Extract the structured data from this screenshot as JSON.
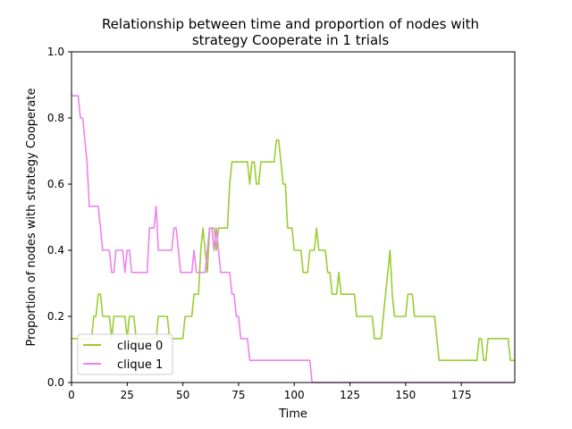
{
  "chart_data": {
    "type": "line",
    "title_line1": "Relationship between time and proportion of nodes with",
    "title_line2": "strategy Cooperate in 1 trials",
    "xlabel": "Time",
    "ylabel": "Proportion of nodes with strategy Cooperate",
    "xlim": [
      0,
      199
    ],
    "ylim": [
      0,
      1.0
    ],
    "xticks": [
      0,
      25,
      50,
      75,
      100,
      125,
      150,
      175
    ],
    "xtick_labels": [
      "0",
      "25",
      "50",
      "75",
      "100",
      "125",
      "150",
      "175"
    ],
    "yticks": [
      0,
      0.2,
      0.4,
      0.6,
      0.8,
      1.0
    ],
    "ytick_labels": [
      "0.0",
      "0.2",
      "0.4",
      "0.6",
      "0.8",
      "1.0"
    ],
    "legend_position": "lower-left",
    "series": [
      {
        "name": "clique 0",
        "color": "#9acd32",
        "points": [
          [
            0,
            0.133
          ],
          [
            9,
            0.133
          ],
          [
            10,
            0.2
          ],
          [
            11,
            0.2
          ],
          [
            12,
            0.267
          ],
          [
            13,
            0.267
          ],
          [
            14,
            0.2
          ],
          [
            17,
            0.2
          ],
          [
            18,
            0.133
          ],
          [
            19,
            0.2
          ],
          [
            24,
            0.2
          ],
          [
            25,
            0.133
          ],
          [
            26,
            0.2
          ],
          [
            28,
            0.2
          ],
          [
            29,
            0.133
          ],
          [
            38,
            0.133
          ],
          [
            39,
            0.2
          ],
          [
            43,
            0.2
          ],
          [
            44,
            0.133
          ],
          [
            50,
            0.133
          ],
          [
            51,
            0.2
          ],
          [
            54,
            0.2
          ],
          [
            55,
            0.267
          ],
          [
            57,
            0.267
          ],
          [
            58,
            0.4
          ],
          [
            59,
            0.467
          ],
          [
            60,
            0.4
          ],
          [
            61,
            0.333
          ],
          [
            62,
            0.467
          ],
          [
            64,
            0.467
          ],
          [
            65,
            0.4
          ],
          [
            66,
            0.467
          ],
          [
            70,
            0.467
          ],
          [
            71,
            0.6
          ],
          [
            72,
            0.667
          ],
          [
            79,
            0.667
          ],
          [
            80,
            0.6
          ],
          [
            81,
            0.667
          ],
          [
            82,
            0.667
          ],
          [
            83,
            0.6
          ],
          [
            84,
            0.6
          ],
          [
            85,
            0.667
          ],
          [
            91,
            0.667
          ],
          [
            92,
            0.733
          ],
          [
            93,
            0.733
          ],
          [
            94,
            0.667
          ],
          [
            95,
            0.6
          ],
          [
            96,
            0.6
          ],
          [
            97,
            0.467
          ],
          [
            99,
            0.467
          ],
          [
            100,
            0.4
          ],
          [
            103,
            0.4
          ],
          [
            104,
            0.333
          ],
          [
            106,
            0.333
          ],
          [
            107,
            0.4
          ],
          [
            109,
            0.4
          ],
          [
            110,
            0.467
          ],
          [
            111,
            0.4
          ],
          [
            114,
            0.4
          ],
          [
            115,
            0.333
          ],
          [
            116,
            0.333
          ],
          [
            117,
            0.267
          ],
          [
            119,
            0.267
          ],
          [
            120,
            0.333
          ],
          [
            121,
            0.267
          ],
          [
            127,
            0.267
          ],
          [
            128,
            0.2
          ],
          [
            135,
            0.2
          ],
          [
            136,
            0.133
          ],
          [
            139,
            0.133
          ],
          [
            140,
            0.2
          ],
          [
            141,
            0.267
          ],
          [
            142,
            0.333
          ],
          [
            143,
            0.4
          ],
          [
            144,
            0.267
          ],
          [
            145,
            0.2
          ],
          [
            150,
            0.2
          ],
          [
            151,
            0.267
          ],
          [
            153,
            0.267
          ],
          [
            154,
            0.2
          ],
          [
            163,
            0.2
          ],
          [
            164,
            0.133
          ],
          [
            165,
            0.067
          ],
          [
            182,
            0.067
          ],
          [
            183,
            0.133
          ],
          [
            184,
            0.133
          ],
          [
            185,
            0.067
          ],
          [
            186,
            0.067
          ],
          [
            187,
            0.133
          ],
          [
            196,
            0.133
          ],
          [
            197,
            0.067
          ],
          [
            199,
            0.067
          ]
        ]
      },
      {
        "name": "clique 1",
        "color": "#ee82ee",
        "points": [
          [
            0,
            0.867
          ],
          [
            3,
            0.867
          ],
          [
            4,
            0.8
          ],
          [
            5,
            0.8
          ],
          [
            6,
            0.733
          ],
          [
            7,
            0.667
          ],
          [
            8,
            0.533
          ],
          [
            12,
            0.533
          ],
          [
            13,
            0.467
          ],
          [
            14,
            0.4
          ],
          [
            17,
            0.4
          ],
          [
            18,
            0.333
          ],
          [
            19,
            0.333
          ],
          [
            20,
            0.4
          ],
          [
            23,
            0.4
          ],
          [
            24,
            0.333
          ],
          [
            25,
            0.4
          ],
          [
            26,
            0.4
          ],
          [
            27,
            0.333
          ],
          [
            34,
            0.333
          ],
          [
            35,
            0.467
          ],
          [
            37,
            0.467
          ],
          [
            38,
            0.533
          ],
          [
            39,
            0.4
          ],
          [
            45,
            0.4
          ],
          [
            46,
            0.467
          ],
          [
            47,
            0.467
          ],
          [
            48,
            0.4
          ],
          [
            49,
            0.333
          ],
          [
            54,
            0.333
          ],
          [
            55,
            0.4
          ],
          [
            56,
            0.333
          ],
          [
            60,
            0.333
          ],
          [
            61,
            0.4
          ],
          [
            62,
            0.467
          ],
          [
            63,
            0.467
          ],
          [
            64,
            0.4
          ],
          [
            65,
            0.467
          ],
          [
            66,
            0.4
          ],
          [
            67,
            0.333
          ],
          [
            71,
            0.333
          ],
          [
            72,
            0.267
          ],
          [
            73,
            0.267
          ],
          [
            74,
            0.2
          ],
          [
            75,
            0.2
          ],
          [
            76,
            0.133
          ],
          [
            79,
            0.133
          ],
          [
            80,
            0.067
          ],
          [
            107,
            0.067
          ],
          [
            108,
            0
          ],
          [
            199,
            0
          ]
        ]
      }
    ]
  }
}
